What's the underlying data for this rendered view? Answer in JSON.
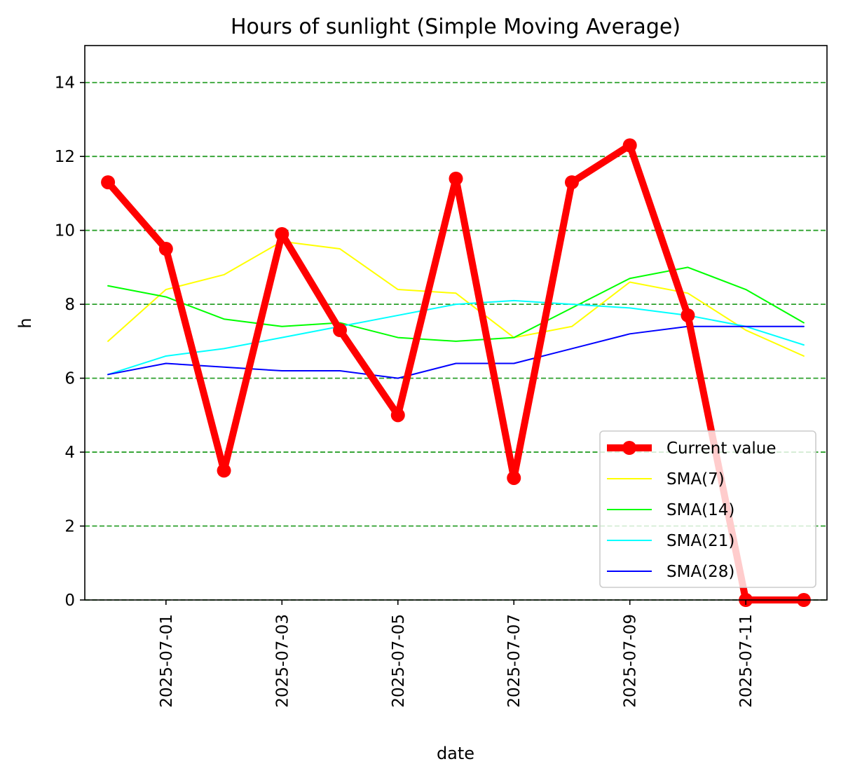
{
  "chart_data": {
    "type": "line",
    "title": "Hours of sunlight (Simple Moving Average)",
    "xlabel": "date",
    "ylabel": "h",
    "x": [
      "2025-06-30",
      "2025-07-01",
      "2025-07-02",
      "2025-07-03",
      "2025-07-04",
      "2025-07-05",
      "2025-07-06",
      "2025-07-07",
      "2025-07-08",
      "2025-07-09",
      "2025-07-10",
      "2025-07-11",
      "2025-07-12"
    ],
    "xlim": [
      "2025-06-29T14:24",
      "2025-07-12T09:36"
    ],
    "ylim": [
      0,
      15
    ],
    "x_ticks": [
      "2025-07-01",
      "2025-07-03",
      "2025-07-05",
      "2025-07-07",
      "2025-07-09",
      "2025-07-11"
    ],
    "y_ticks": [
      0,
      2,
      4,
      6,
      8,
      10,
      12,
      14
    ],
    "grid": "horizontal",
    "grid_color": "#2ca02c",
    "legend_position": "lower-right",
    "series": [
      {
        "name": "Current value",
        "color": "#ff0000",
        "marker": true,
        "values": [
          11.3,
          9.5,
          3.5,
          9.9,
          7.3,
          5.0,
          11.4,
          3.3,
          11.3,
          12.3,
          7.7,
          0.0,
          0.0
        ]
      },
      {
        "name": "SMA(7)",
        "color": "#ffff00",
        "marker": false,
        "values": [
          7.0,
          8.4,
          8.8,
          9.7,
          9.5,
          8.4,
          8.3,
          7.1,
          7.4,
          8.6,
          8.3,
          7.3,
          6.6
        ]
      },
      {
        "name": "SMA(14)",
        "color": "#00ff00",
        "marker": false,
        "values": [
          8.5,
          8.2,
          7.6,
          7.4,
          7.5,
          7.1,
          7.0,
          7.1,
          7.9,
          8.7,
          9.0,
          8.4,
          7.5
        ]
      },
      {
        "name": "SMA(21)",
        "color": "#00ffff",
        "marker": false,
        "values": [
          6.1,
          6.6,
          6.8,
          7.1,
          7.4,
          7.7,
          8.0,
          8.1,
          8.0,
          7.9,
          7.7,
          7.4,
          6.9
        ]
      },
      {
        "name": "SMA(28)",
        "color": "#0000ff",
        "marker": false,
        "values": [
          6.1,
          6.4,
          6.3,
          6.2,
          6.2,
          6.0,
          6.4,
          6.4,
          6.8,
          7.2,
          7.4,
          7.4,
          7.4
        ]
      }
    ]
  }
}
